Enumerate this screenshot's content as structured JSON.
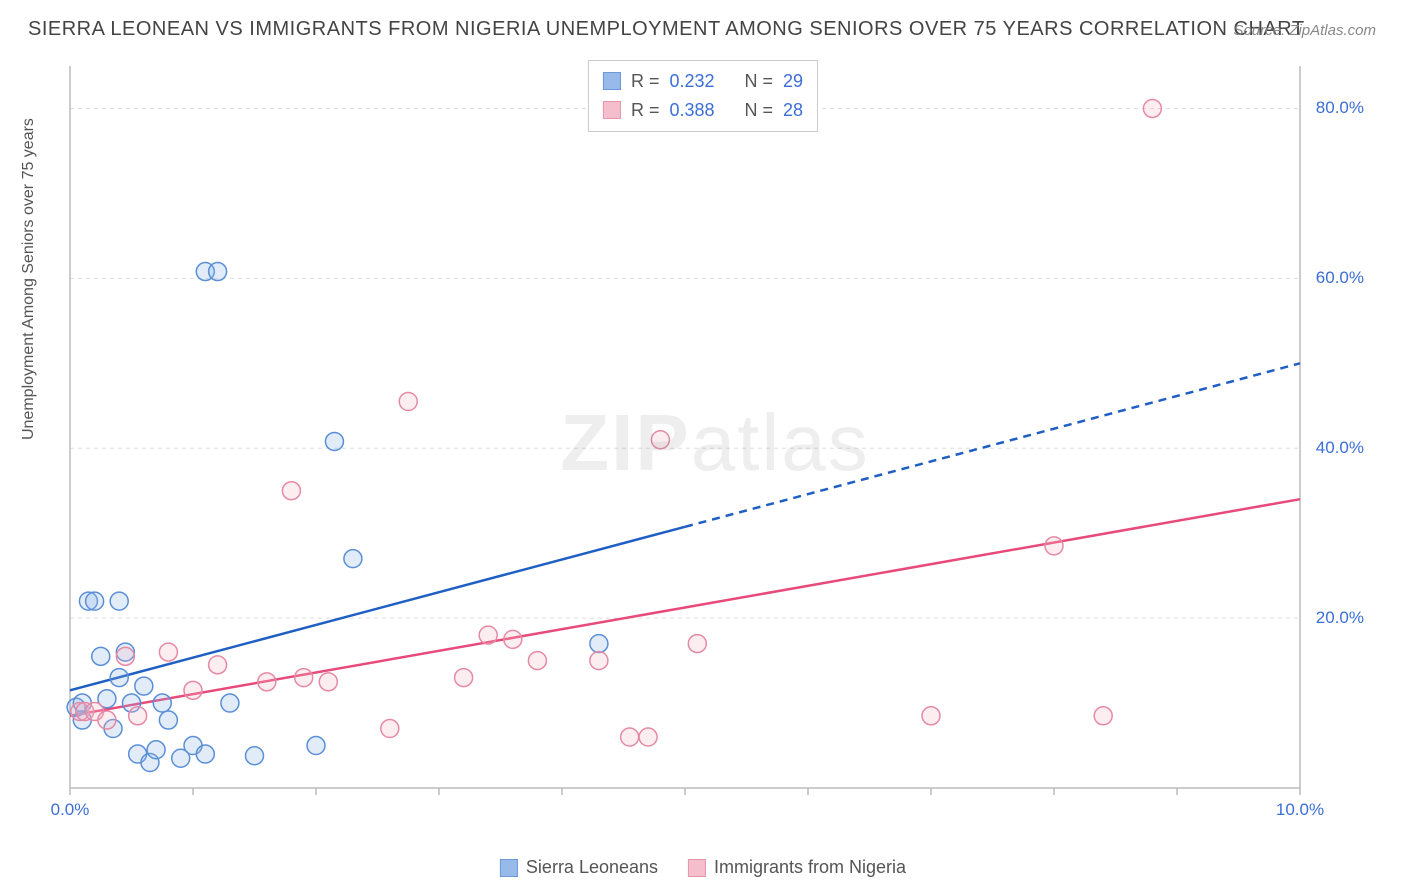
{
  "title": "SIERRA LEONEAN VS IMMIGRANTS FROM NIGERIA UNEMPLOYMENT AMONG SENIORS OVER 75 YEARS CORRELATION CHART",
  "source": "Source: ZipAtlas.com",
  "ylabel": "Unemployment Among Seniors over 75 years",
  "watermark_a": "ZIP",
  "watermark_b": "atlas",
  "chart": {
    "type": "scatter",
    "xlim": [
      0,
      10
    ],
    "ylim": [
      0,
      85
    ],
    "x_ticks": [
      0,
      10
    ],
    "x_tick_labels": [
      "0.0%",
      "10.0%"
    ],
    "y_ticks": [
      20,
      40,
      60,
      80
    ],
    "y_tick_labels": [
      "20.0%",
      "40.0%",
      "60.0%",
      "80.0%"
    ],
    "background_color": "#ffffff",
    "grid_color": "#dddddd",
    "axis_color": "#bbbbbb",
    "tick_label_color": "#3b6fd6",
    "marker_radius": 9,
    "marker_fill_opacity": 0.25,
    "marker_stroke_width": 1.5,
    "trend_line_width": 2.5,
    "series": [
      {
        "key": "sierra",
        "label": "Sierra Leoneans",
        "color_stroke": "#5a8fd6",
        "color_fill": "#8db3e8",
        "trend_color": "#1f5fc4",
        "R": "0.232",
        "N": "29",
        "trend": {
          "x1": 0,
          "y1": 11.5,
          "x2": 10,
          "y2": 50,
          "solid_until_x": 5.0
        },
        "points": [
          {
            "x": 0.05,
            "y": 9.5
          },
          {
            "x": 0.1,
            "y": 10.0
          },
          {
            "x": 0.1,
            "y": 8.0
          },
          {
            "x": 0.15,
            "y": 22.0
          },
          {
            "x": 0.2,
            "y": 22.0
          },
          {
            "x": 0.25,
            "y": 15.5
          },
          {
            "x": 0.3,
            "y": 10.5
          },
          {
            "x": 0.35,
            "y": 7.0
          },
          {
            "x": 0.4,
            "y": 22.0
          },
          {
            "x": 0.4,
            "y": 13.0
          },
          {
            "x": 0.45,
            "y": 16.0
          },
          {
            "x": 0.5,
            "y": 10.0
          },
          {
            "x": 0.55,
            "y": 4.0
          },
          {
            "x": 0.6,
            "y": 12.0
          },
          {
            "x": 0.65,
            "y": 3.0
          },
          {
            "x": 0.7,
            "y": 4.5
          },
          {
            "x": 0.75,
            "y": 10.0
          },
          {
            "x": 0.8,
            "y": 8.0
          },
          {
            "x": 0.9,
            "y": 3.5
          },
          {
            "x": 1.0,
            "y": 5.0
          },
          {
            "x": 1.1,
            "y": 4.0
          },
          {
            "x": 1.1,
            "y": 60.8
          },
          {
            "x": 1.2,
            "y": 60.8
          },
          {
            "x": 1.3,
            "y": 10.0
          },
          {
            "x": 1.5,
            "y": 3.8
          },
          {
            "x": 2.0,
            "y": 5.0
          },
          {
            "x": 2.15,
            "y": 40.8
          },
          {
            "x": 2.3,
            "y": 27.0
          },
          {
            "x": 4.3,
            "y": 17.0
          }
        ]
      },
      {
        "key": "nigeria",
        "label": "Immigants from Nigeria",
        "color_stroke": "#e58aa5",
        "color_fill": "#f3b8c8",
        "trend_color": "#e84a7a",
        "R": "0.388",
        "N": "28",
        "trend": {
          "x1": 0,
          "y1": 8.5,
          "x2": 10,
          "y2": 34,
          "solid_until_x": 10
        },
        "points": [
          {
            "x": 0.08,
            "y": 9.0
          },
          {
            "x": 0.12,
            "y": 9.0
          },
          {
            "x": 0.2,
            "y": 9.0
          },
          {
            "x": 0.3,
            "y": 8.0
          },
          {
            "x": 0.45,
            "y": 15.5
          },
          {
            "x": 0.55,
            "y": 8.5
          },
          {
            "x": 0.8,
            "y": 16.0
          },
          {
            "x": 1.0,
            "y": 11.5
          },
          {
            "x": 1.2,
            "y": 14.5
          },
          {
            "x": 1.6,
            "y": 12.5
          },
          {
            "x": 1.8,
            "y": 35.0
          },
          {
            "x": 1.9,
            "y": 13.0
          },
          {
            "x": 2.1,
            "y": 12.5
          },
          {
            "x": 2.6,
            "y": 7.0
          },
          {
            "x": 2.75,
            "y": 45.5
          },
          {
            "x": 3.2,
            "y": 13.0
          },
          {
            "x": 3.4,
            "y": 18.0
          },
          {
            "x": 3.6,
            "y": 17.5
          },
          {
            "x": 3.8,
            "y": 15.0
          },
          {
            "x": 4.3,
            "y": 15.0
          },
          {
            "x": 4.55,
            "y": 6.0
          },
          {
            "x": 4.7,
            "y": 6.0
          },
          {
            "x": 4.8,
            "y": 41.0
          },
          {
            "x": 5.1,
            "y": 17.0
          },
          {
            "x": 7.0,
            "y": 8.5
          },
          {
            "x": 8.0,
            "y": 28.5
          },
          {
            "x": 8.4,
            "y": 8.5
          },
          {
            "x": 8.8,
            "y": 80.0
          }
        ]
      }
    ],
    "stats_box": {
      "r_label": "R =",
      "n_label": "N ="
    },
    "legend_bottom": {
      "series1": "Sierra Leoneans",
      "series2": "Immigrants from Nigeria"
    }
  }
}
